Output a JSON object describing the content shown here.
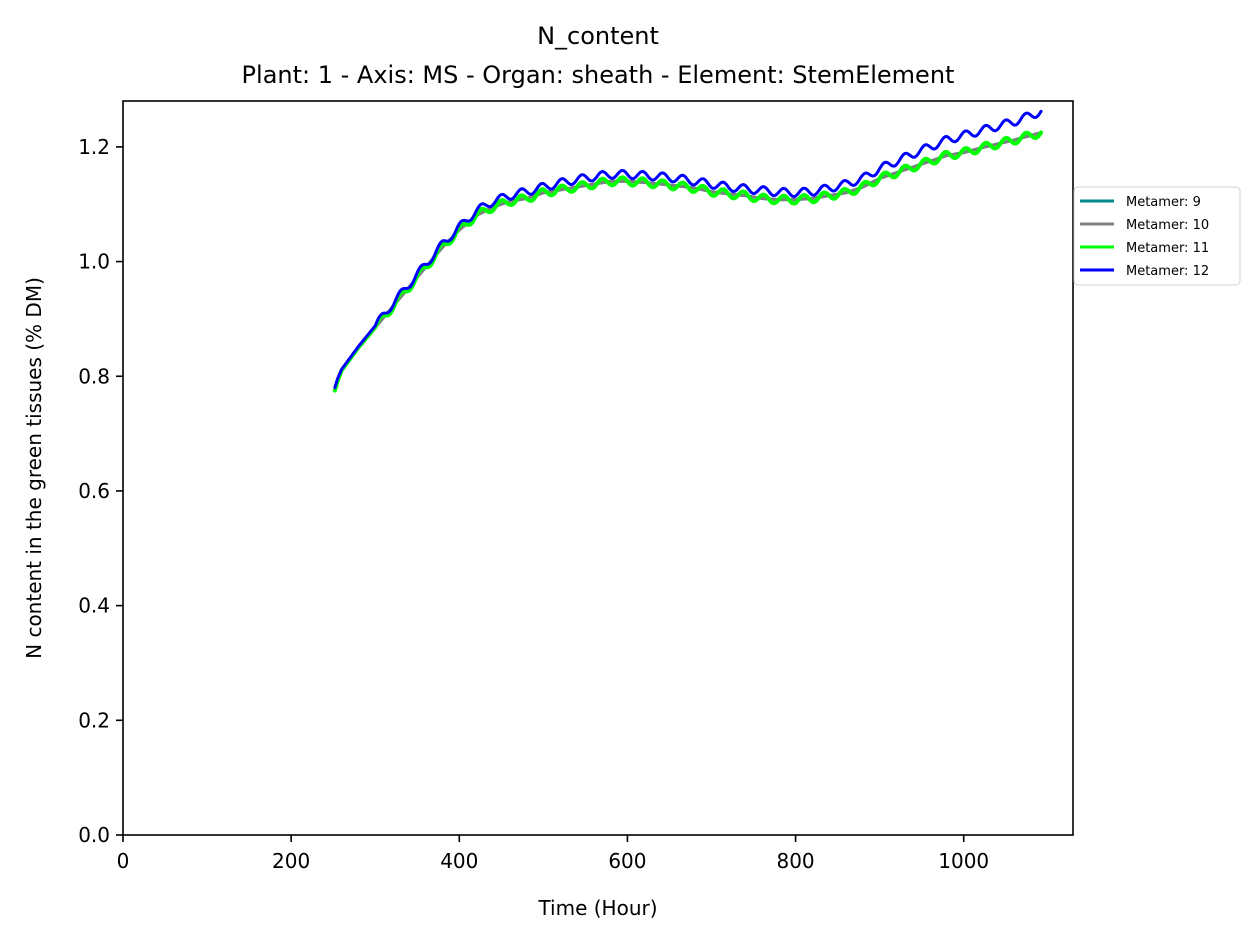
{
  "chart_data": {
    "type": "line",
    "title": "N_content",
    "subtitle": "Plant: 1 - Axis: MS - Organ: sheath - Element: StemElement",
    "xlabel": "Time (Hour)",
    "ylabel": "N content in the green tissues (% DM)",
    "xlim": [
      0,
      1130
    ],
    "ylim": [
      0,
      1.28
    ],
    "xticks": [
      0,
      200,
      400,
      600,
      800,
      1000
    ],
    "yticks": [
      0.0,
      0.2,
      0.4,
      0.6,
      0.8,
      1.0,
      1.2
    ],
    "xtick_labels": [
      "0",
      "200",
      "400",
      "600",
      "800",
      "1000"
    ],
    "ytick_labels": [
      "0.0",
      "0.2",
      "0.4",
      "0.6",
      "0.8",
      "1.0",
      "1.2"
    ],
    "grid": false,
    "legend_position": "outside right",
    "series": [
      {
        "name": "Metamer: 9",
        "color": "#008b8b",
        "x": [
          252,
          255,
          260,
          270,
          280,
          300,
          320,
          340,
          360,
          380,
          400,
          420,
          440,
          460,
          480,
          500,
          520,
          540,
          560,
          580,
          600,
          620,
          640,
          660,
          680,
          700,
          720,
          740,
          760,
          780,
          800,
          820,
          840,
          860,
          880,
          900,
          920,
          940,
          960,
          980,
          1000,
          1020,
          1040,
          1060,
          1080,
          1092
        ],
        "y": [
          0.775,
          0.79,
          0.81,
          0.83,
          0.85,
          0.885,
          0.92,
          0.955,
          0.99,
          1.025,
          1.055,
          1.08,
          1.095,
          1.105,
          1.11,
          1.12,
          1.125,
          1.13,
          1.135,
          1.14,
          1.14,
          1.138,
          1.135,
          1.132,
          1.128,
          1.122,
          1.118,
          1.115,
          1.11,
          1.108,
          1.108,
          1.11,
          1.115,
          1.12,
          1.13,
          1.145,
          1.155,
          1.165,
          1.175,
          1.185,
          1.19,
          1.198,
          1.205,
          1.212,
          1.22,
          1.225
        ]
      },
      {
        "name": "Metamer: 10",
        "color": "#808080",
        "x": [
          252,
          255,
          260,
          270,
          280,
          300,
          320,
          340,
          360,
          380,
          400,
          420,
          440,
          460,
          480,
          500,
          520,
          540,
          560,
          580,
          600,
          620,
          640,
          660,
          680,
          700,
          720,
          740,
          760,
          780,
          800,
          820,
          840,
          860,
          880,
          900,
          920,
          940,
          960,
          980,
          1000,
          1020,
          1040,
          1060,
          1080,
          1092
        ],
        "y": [
          0.775,
          0.79,
          0.81,
          0.83,
          0.85,
          0.885,
          0.92,
          0.955,
          0.99,
          1.025,
          1.055,
          1.08,
          1.095,
          1.105,
          1.11,
          1.12,
          1.125,
          1.13,
          1.135,
          1.14,
          1.14,
          1.138,
          1.135,
          1.132,
          1.128,
          1.122,
          1.118,
          1.115,
          1.11,
          1.108,
          1.108,
          1.11,
          1.115,
          1.12,
          1.13,
          1.145,
          1.155,
          1.165,
          1.175,
          1.185,
          1.19,
          1.198,
          1.205,
          1.212,
          1.22,
          1.225
        ]
      },
      {
        "name": "Metamer: 11",
        "color": "#00ff00",
        "x": [
          252,
          255,
          260,
          270,
          280,
          300,
          320,
          340,
          360,
          380,
          400,
          420,
          440,
          460,
          480,
          500,
          520,
          540,
          560,
          580,
          600,
          620,
          640,
          660,
          680,
          700,
          720,
          740,
          760,
          780,
          800,
          820,
          840,
          860,
          880,
          900,
          920,
          940,
          960,
          980,
          1000,
          1020,
          1040,
          1060,
          1080,
          1092
        ],
        "y": [
          0.775,
          0.79,
          0.81,
          0.83,
          0.85,
          0.885,
          0.92,
          0.955,
          0.99,
          1.025,
          1.055,
          1.08,
          1.095,
          1.105,
          1.11,
          1.12,
          1.125,
          1.13,
          1.135,
          1.14,
          1.14,
          1.138,
          1.135,
          1.132,
          1.128,
          1.122,
          1.118,
          1.115,
          1.11,
          1.108,
          1.108,
          1.11,
          1.115,
          1.12,
          1.13,
          1.145,
          1.155,
          1.165,
          1.175,
          1.185,
          1.19,
          1.198,
          1.205,
          1.212,
          1.22,
          1.225
        ],
        "wobble": 0.007
      },
      {
        "name": "Metamer: 12",
        "color": "#0000ff",
        "x": [
          252,
          255,
          260,
          270,
          280,
          300,
          320,
          340,
          360,
          380,
          400,
          420,
          440,
          460,
          480,
          500,
          520,
          540,
          560,
          580,
          600,
          620,
          640,
          660,
          680,
          700,
          720,
          740,
          760,
          780,
          800,
          820,
          840,
          860,
          880,
          900,
          920,
          940,
          960,
          980,
          1000,
          1020,
          1040,
          1060,
          1080,
          1092
        ],
        "y": [
          0.78,
          0.795,
          0.812,
          0.832,
          0.852,
          0.888,
          0.925,
          0.96,
          0.995,
          1.03,
          1.06,
          1.088,
          1.105,
          1.115,
          1.122,
          1.13,
          1.137,
          1.143,
          1.148,
          1.152,
          1.152,
          1.15,
          1.148,
          1.145,
          1.14,
          1.135,
          1.13,
          1.127,
          1.124,
          1.121,
          1.12,
          1.122,
          1.128,
          1.135,
          1.145,
          1.162,
          1.175,
          1.188,
          1.2,
          1.212,
          1.22,
          1.228,
          1.236,
          1.244,
          1.255,
          1.262
        ],
        "wobble": 0.007
      }
    ]
  }
}
